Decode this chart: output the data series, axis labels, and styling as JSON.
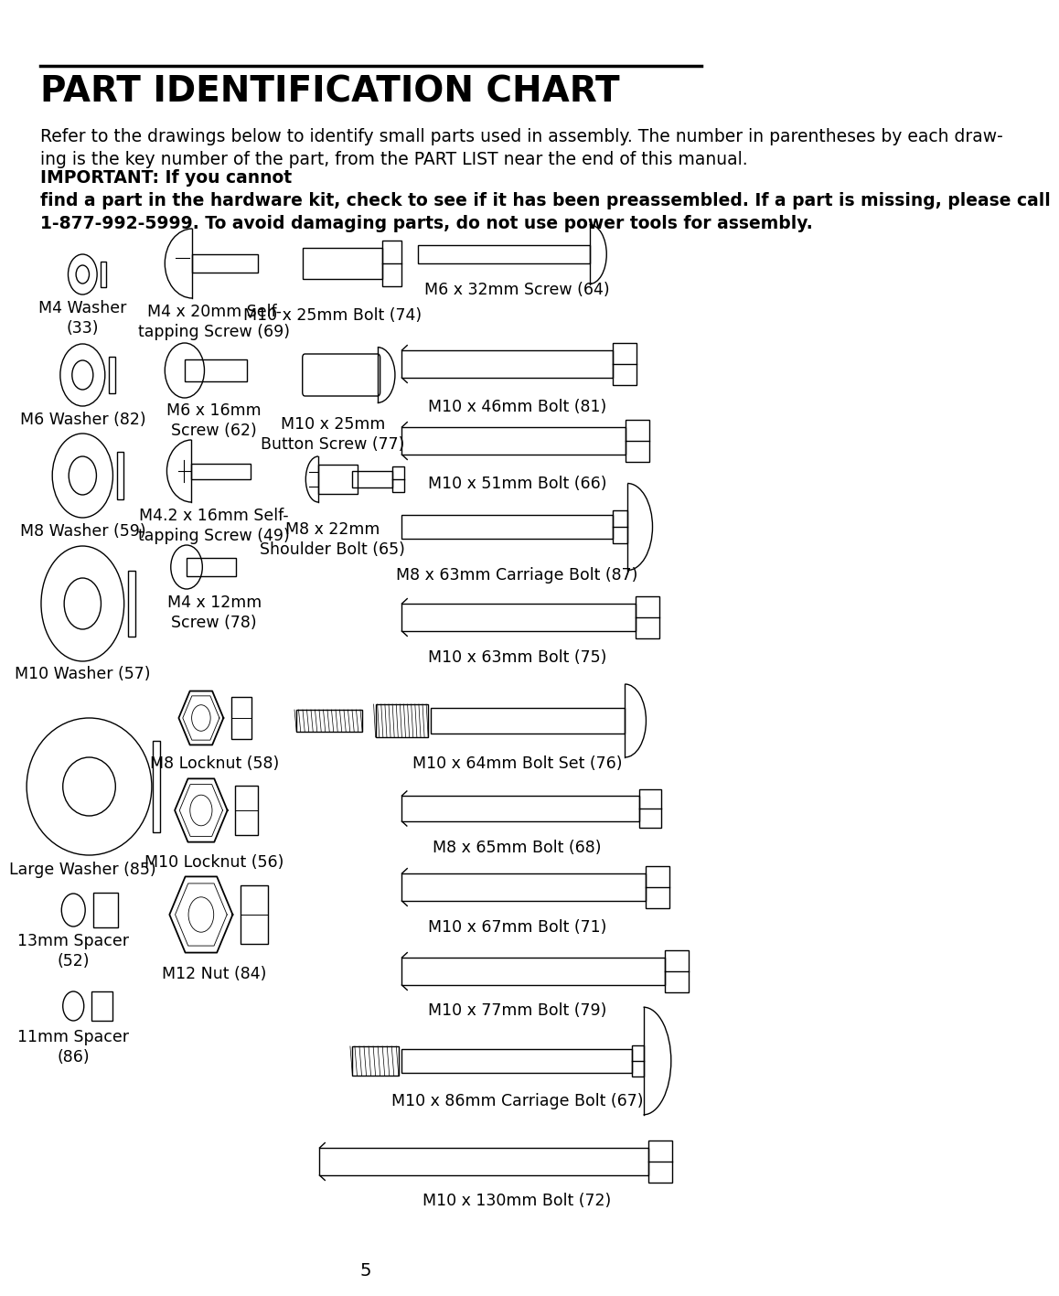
{
  "title": "PART IDENTIFICATION CHART",
  "body_normal": "Refer to the drawings below to identify small parts used in assembly. The number in parentheses by each draw-\ning is the key number of the part, from the PART LIST near the end of this manual. ",
  "body_bold": "IMPORTANT: If you cannot\nfind a part in the hardware kit, check to see if it has been preassembled. If a part is missing, please call\n1-877-992-5999. To avoid damaging parts, do not use power tools for assembly.",
  "page_number": "5",
  "bg_color": "#ffffff",
  "lc": "#000000",
  "tc": "#000000",
  "lw": 1.0
}
